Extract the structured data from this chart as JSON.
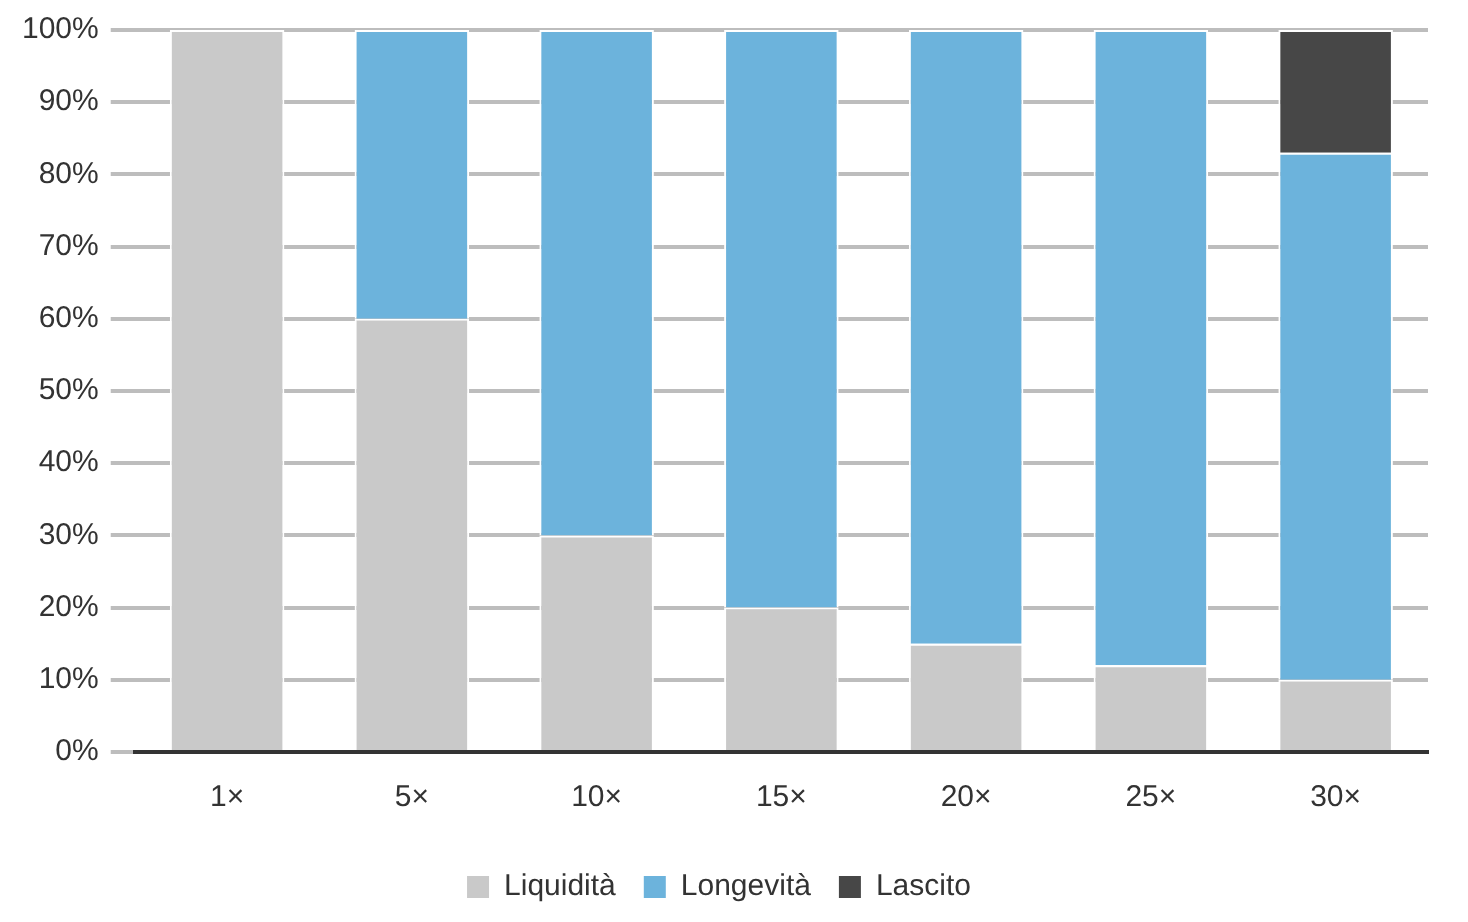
{
  "chart_data": {
    "type": "bar",
    "stacked": true,
    "categories": [
      "1×",
      "5×",
      "10×",
      "15×",
      "20×",
      "25×",
      "30×"
    ],
    "series": [
      {
        "name": "Liquidità",
        "color": "#c9c9c9",
        "values": [
          100,
          60,
          30,
          20,
          15,
          12,
          10
        ]
      },
      {
        "name": "Longevità",
        "color": "#6cb3dc",
        "values": [
          0,
          40,
          70,
          80,
          85,
          88,
          73
        ]
      },
      {
        "name": "Lascito",
        "color": "#474747",
        "values": [
          0,
          0,
          0,
          0,
          0,
          0,
          17
        ]
      }
    ],
    "ylim": [
      0,
      100
    ],
    "yticks": [
      {
        "value": 0,
        "label": "0%"
      },
      {
        "value": 10,
        "label": "10%"
      },
      {
        "value": 20,
        "label": "20%"
      },
      {
        "value": 30,
        "label": "30%"
      },
      {
        "value": 40,
        "label": "40%"
      },
      {
        "value": 50,
        "label": "50%"
      },
      {
        "value": 60,
        "label": "60%"
      },
      {
        "value": 70,
        "label": "70%"
      },
      {
        "value": 80,
        "label": "80%"
      },
      {
        "value": 90,
        "label": "90%"
      },
      {
        "value": 100,
        "label": "100%"
      }
    ],
    "grid": "y",
    "legend": "bottom"
  }
}
